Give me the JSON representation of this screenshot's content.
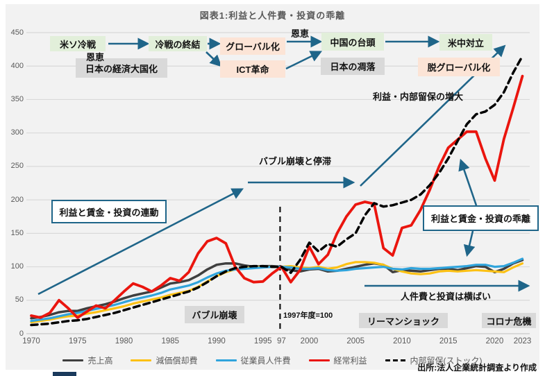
{
  "title": "図表1:利益と人件費・投資の乖離",
  "source": "出所:法人企業統計調査より作成",
  "annotations": {
    "cold_war": "米ソ冷戦",
    "cold_war_end": "冷戦の終結",
    "globalization": "グローバル化",
    "ict_revolution": "ICT革命",
    "china_rise": "中国の台頭",
    "us_china_conflict": "米中対立",
    "japan_economic_power": "日本の経済大国化",
    "japan_decline": "日本の凋落",
    "deglobalization": "脱グローバル化",
    "benefit_1": "恩恵",
    "benefit_2": "恩恵",
    "profit_retention_increase": "利益・内部留保の増大",
    "bubble_collapse_stagnation": "バブル崩壊と停滞",
    "profit_wage_link": "利益と賃金・投資の連動",
    "profit_wage_divergence": "利益と賃金・投資の乖離",
    "bubble_collapse": "バブル崩壊",
    "lehman_shock": "リーマンショック",
    "corona_crisis": "コロナ危機",
    "base_year_note": "1997年度=100",
    "flat_labor_investment": "人件費と投資は横ばい"
  },
  "legend": {
    "items": [
      {
        "label": "売上高",
        "color": "#3f3f3f",
        "dash": false
      },
      {
        "label": "減価償却費",
        "color": "#fcc114",
        "dash": false
      },
      {
        "label": "従業員人件費",
        "color": "#30a4dc",
        "dash": false
      },
      {
        "label": "経常利益",
        "color": "#ea150e",
        "dash": false
      },
      {
        "label": "内部留保(ストック)",
        "color": "#000000",
        "dash": true
      }
    ]
  },
  "colors": {
    "background": "#f2f2f2",
    "gridline": "#d9d9d9",
    "arrow": "#1f6589",
    "event_green": "#e2efda",
    "event_pink": "#fce4d6",
    "event_gray": "#d9d9d9"
  },
  "chart_data": {
    "type": "line",
    "title": "図表1:利益と人件費・投資の乖離",
    "xlabel": "",
    "ylabel": "",
    "note": "index, FY1997 = 100",
    "ylim": [
      0,
      450
    ],
    "yticks": [
      0,
      50,
      100,
      150,
      200,
      250,
      300,
      350,
      400,
      450
    ],
    "grid": true,
    "legend_position": "bottom",
    "reference_line_year": 1997,
    "x": [
      1970,
      1971,
      1972,
      1973,
      1974,
      1975,
      1976,
      1977,
      1978,
      1979,
      1980,
      1981,
      1982,
      1983,
      1984,
      1985,
      1986,
      1987,
      1988,
      1989,
      1990,
      1991,
      1992,
      1993,
      1994,
      1995,
      1996,
      1997,
      1998,
      1999,
      2000,
      2001,
      2002,
      2003,
      2004,
      2005,
      2006,
      2007,
      2008,
      2009,
      2010,
      2011,
      2012,
      2013,
      2014,
      2015,
      2016,
      2017,
      2018,
      2019,
      2020,
      2021,
      2022,
      2023
    ],
    "x_axis_ticks": [
      {
        "x": 1970,
        "label": "1970"
      },
      {
        "x": 1975,
        "label": "1975"
      },
      {
        "x": 1980,
        "label": "1980"
      },
      {
        "x": 1985,
        "label": "1985"
      },
      {
        "x": 1990,
        "label": "1990"
      },
      {
        "x": 1995,
        "label": "1995"
      },
      {
        "x": 1997,
        "label": "97"
      },
      {
        "x": 2000,
        "label": "2000"
      },
      {
        "x": 2005,
        "label": "2005"
      },
      {
        "x": 2010,
        "label": "2010"
      },
      {
        "x": 2015,
        "label": "2015"
      },
      {
        "x": 2020,
        "label": "2020"
      },
      {
        "x": 2023,
        "label": "2023"
      }
    ],
    "series": [
      {
        "name": "売上高",
        "color": "#3f3f3f",
        "dash": false,
        "width": 3.5,
        "values": [
          23,
          25,
          28,
          32,
          34,
          34,
          38,
          41,
          44,
          48,
          53,
          57,
          60,
          63,
          69,
          75,
          77,
          80,
          87,
          96,
          103,
          105,
          105,
          102,
          100,
          101,
          101,
          100,
          95,
          93,
          96,
          97,
          93,
          94,
          97,
          100,
          103,
          105,
          103,
          92,
          95,
          94,
          93,
          95,
          97,
          97,
          95,
          98,
          101,
          100,
          92,
          97,
          105,
          110
        ]
      },
      {
        "name": "減価償却費",
        "color": "#fcc114",
        "dash": false,
        "width": 3.2,
        "values": [
          17,
          19,
          21,
          24,
          26,
          27,
          30,
          32,
          35,
          38,
          41,
          45,
          48,
          51,
          54,
          58,
          61,
          64,
          70,
          78,
          86,
          92,
          96,
          98,
          99,
          100,
          100,
          100,
          101,
          99,
          98,
          100,
          97,
          99,
          104,
          107,
          107,
          106,
          103,
          97,
          93,
          90,
          89,
          90,
          93,
          94,
          93,
          94,
          95,
          94,
          93,
          92,
          99,
          105
        ]
      },
      {
        "name": "従業員人件費",
        "color": "#30a4dc",
        "dash": false,
        "width": 3.2,
        "values": [
          19,
          21,
          23,
          26,
          29,
          31,
          34,
          37,
          40,
          43,
          47,
          51,
          54,
          57,
          61,
          66,
          69,
          72,
          77,
          84,
          90,
          94,
          96,
          97,
          98,
          99,
          100,
          100,
          99,
          97,
          97,
          98,
          95,
          94,
          95,
          97,
          98,
          99,
          100,
          97,
          96,
          98,
          97,
          97,
          98,
          99,
          100,
          101,
          103,
          103,
          100,
          101,
          106,
          112
        ]
      },
      {
        "name": "経常利益",
        "color": "#ea150e",
        "dash": false,
        "width": 3.8,
        "values": [
          27,
          24,
          31,
          50,
          38,
          24,
          33,
          42,
          38,
          50,
          63,
          75,
          70,
          63,
          72,
          83,
          79,
          92,
          120,
          138,
          143,
          135,
          100,
          83,
          77,
          78,
          90,
          100,
          77,
          95,
          130,
          104,
          118,
          150,
          175,
          193,
          197,
          194,
          128,
          117,
          158,
          162,
          185,
          215,
          250,
          278,
          290,
          302,
          302,
          262,
          229,
          291,
          337,
          385
        ]
      },
      {
        "name": "内部留保(ストック)",
        "color": "#000000",
        "dash": true,
        "width": 3.5,
        "values": [
          13,
          14,
          15,
          17,
          19,
          20,
          22,
          25,
          28,
          31,
          35,
          39,
          43,
          47,
          51,
          55,
          59,
          63,
          69,
          77,
          86,
          93,
          98,
          100,
          101,
          101,
          100,
          100,
          91,
          110,
          136,
          123,
          134,
          130,
          141,
          150,
          177,
          195,
          190,
          192,
          196,
          200,
          208,
          222,
          240,
          262,
          288,
          313,
          328,
          332,
          342,
          361,
          390,
          415
        ]
      }
    ]
  }
}
